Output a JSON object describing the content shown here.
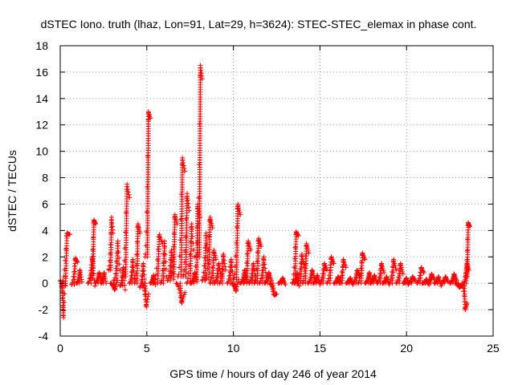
{
  "chart_data": {
    "type": "scatter",
    "title": "dSTEC Iono. truth (lhaz, Lon=91, Lat=29, h=3624): STEC-STEC_elemax in phase cont.",
    "xlabel": "GPS time / hours of day 246 of year 2014",
    "ylabel": "dSTEC  / TECUs",
    "xlim": [
      0,
      25
    ],
    "ylim": [
      -4,
      18
    ],
    "xticks": [
      0,
      5,
      10,
      15,
      20,
      25
    ],
    "yticks": [
      -4,
      -2,
      0,
      2,
      4,
      6,
      8,
      10,
      12,
      14,
      16,
      18
    ],
    "grid": true,
    "marker": "+",
    "marker_color": "#ff0000",
    "arcs": [
      {
        "t0": 0.0,
        "t1": 0.3,
        "y0": 0.2,
        "ypeak": -2.6,
        "y1": 0.5
      },
      {
        "t0": 0.1,
        "t1": 0.55,
        "y0": -0.2,
        "ypeak": 3.8,
        "y1": 3.7
      },
      {
        "t0": 0.65,
        "t1": 1.0,
        "y0": -0.1,
        "ypeak": 1.9,
        "y1": 1.6
      },
      {
        "t0": 0.95,
        "t1": 1.25,
        "y0": 0.0,
        "ypeak": 1.0,
        "y1": 0.1
      },
      {
        "t0": 1.6,
        "t1": 2.0,
        "y0": 0.0,
        "ypeak": 2.0,
        "y1": -0.2
      },
      {
        "t0": 1.75,
        "t1": 2.05,
        "y0": 0.4,
        "ypeak": 4.8,
        "y1": 4.5
      },
      {
        "t0": 2.0,
        "t1": 2.4,
        "y0": 0.0,
        "ypeak": 0.8,
        "y1": 0.2
      },
      {
        "t0": 2.35,
        "t1": 2.65,
        "y0": 0.0,
        "ypeak": 0.8,
        "y1": 0.0
      },
      {
        "t0": 2.8,
        "t1": 3.05,
        "y0": 1.0,
        "ypeak": 5.0,
        "y1": 3.8
      },
      {
        "t0": 2.9,
        "t1": 3.3,
        "y0": 0.0,
        "ypeak": -0.5,
        "y1": 0.2
      },
      {
        "t0": 3.1,
        "t1": 3.45,
        "y0": 0.2,
        "ypeak": 3.2,
        "y1": 1.0
      },
      {
        "t0": 3.45,
        "t1": 3.75,
        "y0": -0.2,
        "ypeak": 1.2,
        "y1": -0.5
      },
      {
        "t0": 3.6,
        "t1": 4.0,
        "y0": 0.5,
        "ypeak": 7.5,
        "y1": 6.5
      },
      {
        "t0": 4.0,
        "t1": 4.3,
        "y0": 0.0,
        "ypeak": 1.8,
        "y1": 0.3
      },
      {
        "t0": 4.3,
        "t1": 4.6,
        "y0": 0.0,
        "ypeak": 4.5,
        "y1": 3.8
      },
      {
        "t0": 4.6,
        "t1": 4.9,
        "y0": -0.3,
        "ypeak": 1.5,
        "y1": 0.0
      },
      {
        "t0": 4.75,
        "t1": 5.1,
        "y0": 0.0,
        "ypeak": -1.8,
        "y1": -0.8
      },
      {
        "t0": 4.9,
        "t1": 5.2,
        "y0": 2.0,
        "ypeak": 13.0,
        "y1": 12.5
      },
      {
        "t0": 5.2,
        "t1": 5.5,
        "y0": 0.0,
        "ypeak": 0.6,
        "y1": -0.1
      },
      {
        "t0": 5.4,
        "t1": 5.9,
        "y0": 0.0,
        "ypeak": 3.7,
        "y1": 3.0
      },
      {
        "t0": 5.8,
        "t1": 6.15,
        "y0": 0.0,
        "ypeak": 3.2,
        "y1": 0.5
      },
      {
        "t0": 6.2,
        "t1": 6.55,
        "y0": 0.2,
        "ypeak": 2.5,
        "y1": 0.3
      },
      {
        "t0": 6.4,
        "t1": 6.75,
        "y0": 0.5,
        "ypeak": 5.2,
        "y1": 4.5
      },
      {
        "t0": 6.7,
        "t1": 7.2,
        "y0": 0.0,
        "ypeak": -1.5,
        "y1": -0.7
      },
      {
        "t0": 6.8,
        "t1": 7.2,
        "y0": 0.5,
        "ypeak": 9.5,
        "y1": 8.5
      },
      {
        "t0": 7.1,
        "t1": 7.45,
        "y0": 0.5,
        "ypeak": 6.8,
        "y1": 5.5
      },
      {
        "t0": 7.3,
        "t1": 7.75,
        "y0": 0.0,
        "ypeak": 4.5,
        "y1": 2.0
      },
      {
        "t0": 7.55,
        "t1": 7.9,
        "y0": 0.0,
        "ypeak": 0.8,
        "y1": 0.1
      },
      {
        "t0": 7.75,
        "t1": 8.05,
        "y0": 0.3,
        "ypeak": 6.0,
        "y1": 5.0
      },
      {
        "t0": 7.9,
        "t1": 8.2,
        "y0": 2.0,
        "ypeak": 16.5,
        "y1": 15.5
      },
      {
        "t0": 8.2,
        "t1": 8.55,
        "y0": 0.2,
        "ypeak": 3.8,
        "y1": 1.5
      },
      {
        "t0": 8.4,
        "t1": 8.8,
        "y0": 0.3,
        "ypeak": 5.0,
        "y1": 4.2
      },
      {
        "t0": 8.65,
        "t1": 9.0,
        "y0": 0.0,
        "ypeak": 2.5,
        "y1": 1.8
      },
      {
        "t0": 8.9,
        "t1": 9.3,
        "y0": 0.0,
        "ypeak": 1.5,
        "y1": 0.5
      },
      {
        "t0": 9.2,
        "t1": 9.55,
        "y0": 0.0,
        "ypeak": 2.2,
        "y1": 1.0
      },
      {
        "t0": 9.65,
        "t1": 10.0,
        "y0": 0.0,
        "ypeak": 1.8,
        "y1": 0.3
      },
      {
        "t0": 9.9,
        "t1": 10.3,
        "y0": 0.0,
        "ypeak": -0.6,
        "y1": 0.3
      },
      {
        "t0": 10.0,
        "t1": 10.4,
        "y0": 0.3,
        "ypeak": 6.0,
        "y1": 5.2
      },
      {
        "t0": 10.4,
        "t1": 10.8,
        "y0": 0.0,
        "ypeak": 1.0,
        "y1": 0.1
      },
      {
        "t0": 10.6,
        "t1": 11.0,
        "y0": 0.0,
        "ypeak": 3.2,
        "y1": 2.5
      },
      {
        "t0": 10.9,
        "t1": 11.3,
        "y0": 0.0,
        "ypeak": 1.5,
        "y1": 0.2
      },
      {
        "t0": 11.2,
        "t1": 11.6,
        "y0": 0.0,
        "ypeak": 3.4,
        "y1": 2.8
      },
      {
        "t0": 11.5,
        "t1": 11.9,
        "y0": 0.0,
        "ypeak": 2.0,
        "y1": 0.5
      },
      {
        "t0": 11.8,
        "t1": 12.2,
        "y0": 0.0,
        "ypeak": 0.8,
        "y1": 0.2
      },
      {
        "t0": 12.1,
        "t1": 12.5,
        "y0": 0.0,
        "ypeak": -0.9,
        "y1": -0.8
      },
      {
        "t0": 12.6,
        "t1": 13.0,
        "y0": 0.0,
        "ypeak": 0.4,
        "y1": -0.1
      },
      {
        "t0": 13.4,
        "t1": 13.75,
        "y0": 0.0,
        "ypeak": 3.9,
        "y1": 3.6
      },
      {
        "t0": 13.5,
        "t1": 13.8,
        "y0": 0.0,
        "ypeak": 0.8,
        "y1": -0.2
      },
      {
        "t0": 13.7,
        "t1": 14.1,
        "y0": 0.0,
        "ypeak": 2.2,
        "y1": 1.2
      },
      {
        "t0": 14.0,
        "t1": 14.35,
        "y0": 0.0,
        "ypeak": 3.0,
        "y1": 2.3
      },
      {
        "t0": 14.3,
        "t1": 14.7,
        "y0": 0.0,
        "ypeak": 1.0,
        "y1": 0.3
      },
      {
        "t0": 14.6,
        "t1": 15.0,
        "y0": 0.0,
        "ypeak": 0.6,
        "y1": -0.1
      },
      {
        "t0": 15.0,
        "t1": 15.4,
        "y0": 0.0,
        "ypeak": 1.5,
        "y1": 1.0
      },
      {
        "t0": 15.4,
        "t1": 15.8,
        "y0": 0.0,
        "ypeak": 2.0,
        "y1": 1.5
      },
      {
        "t0": 15.8,
        "t1": 16.2,
        "y0": 0.0,
        "ypeak": 0.5,
        "y1": 0.0
      },
      {
        "t0": 16.1,
        "t1": 16.5,
        "y0": 0.0,
        "ypeak": 1.8,
        "y1": 1.2
      },
      {
        "t0": 16.5,
        "t1": 16.9,
        "y0": 0.0,
        "ypeak": 0.4,
        "y1": -0.1
      },
      {
        "t0": 16.9,
        "t1": 17.3,
        "y0": 0.0,
        "ypeak": 1.0,
        "y1": 0.5
      },
      {
        "t0": 17.2,
        "t1": 17.6,
        "y0": 0.0,
        "ypeak": 2.3,
        "y1": 1.8
      },
      {
        "t0": 17.6,
        "t1": 18.0,
        "y0": 0.0,
        "ypeak": 0.8,
        "y1": 0.1
      },
      {
        "t0": 17.9,
        "t1": 18.3,
        "y0": 0.0,
        "ypeak": 0.6,
        "y1": 0.0
      },
      {
        "t0": 18.3,
        "t1": 18.7,
        "y0": 0.0,
        "ypeak": 1.5,
        "y1": 0.8
      },
      {
        "t0": 18.6,
        "t1": 19.0,
        "y0": 0.0,
        "ypeak": 0.5,
        "y1": -0.1
      },
      {
        "t0": 19.0,
        "t1": 19.4,
        "y0": 0.0,
        "ypeak": 1.8,
        "y1": 1.0
      },
      {
        "t0": 19.4,
        "t1": 19.8,
        "y0": 0.0,
        "ypeak": 1.5,
        "y1": 0.7
      },
      {
        "t0": 19.8,
        "t1": 20.1,
        "y0": 0.0,
        "ypeak": 0.4,
        "y1": -0.1
      },
      {
        "t0": 20.1,
        "t1": 20.5,
        "y0": 0.0,
        "ypeak": 0.5,
        "y1": 0.2
      },
      {
        "t0": 20.6,
        "t1": 21.0,
        "y0": 0.0,
        "ypeak": 1.2,
        "y1": 0.8
      },
      {
        "t0": 20.9,
        "t1": 21.3,
        "y0": 0.0,
        "ypeak": 0.3,
        "y1": -0.1
      },
      {
        "t0": 21.2,
        "t1": 21.6,
        "y0": 0.0,
        "ypeak": 0.7,
        "y1": 0.3
      },
      {
        "t0": 21.6,
        "t1": 22.0,
        "y0": 0.0,
        "ypeak": 0.5,
        "y1": -0.2
      },
      {
        "t0": 22.0,
        "t1": 22.4,
        "y0": 0.0,
        "ypeak": 0.5,
        "y1": 0.1
      },
      {
        "t0": 22.5,
        "t1": 22.9,
        "y0": 0.0,
        "ypeak": 0.7,
        "y1": 0.2
      },
      {
        "t0": 22.8,
        "t1": 23.2,
        "y0": 0.0,
        "ypeak": -0.3,
        "y1": -0.2
      },
      {
        "t0": 23.2,
        "t1": 23.5,
        "y0": 0.0,
        "ypeak": -2.0,
        "y1": -1.5
      },
      {
        "t0": 23.3,
        "t1": 23.6,
        "y0": 0.0,
        "ypeak": 1.5,
        "y1": 1.0
      },
      {
        "t0": 23.4,
        "t1": 23.65,
        "y0": 0.5,
        "ypeak": 4.6,
        "y1": 4.3
      }
    ]
  }
}
